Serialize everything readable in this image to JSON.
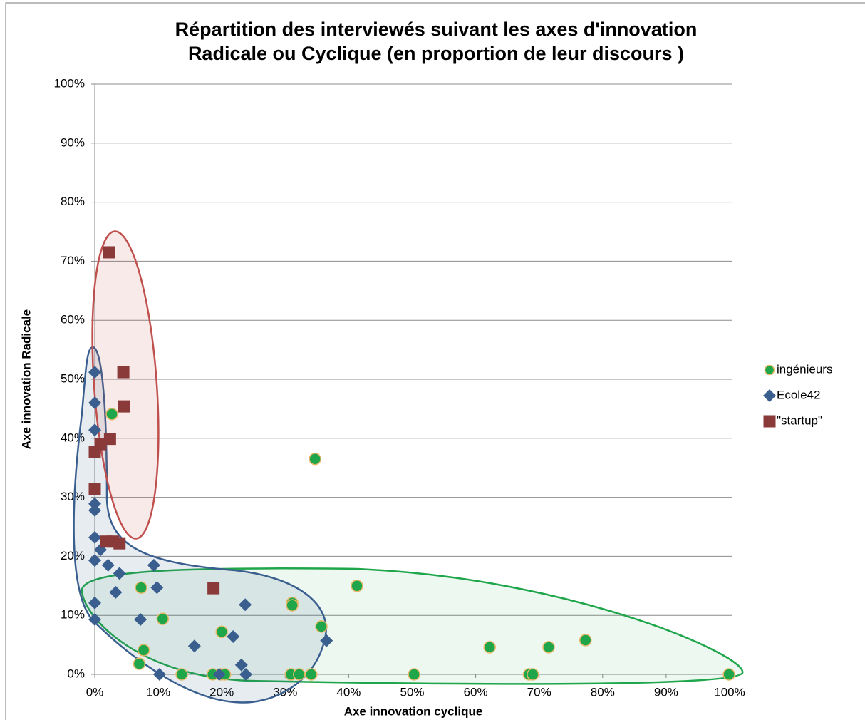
{
  "chart_data": {
    "type": "scatter",
    "title": [
      "Répartition des interviewés suivant les axes d'innovation",
      "Radicale  ou Cyclique (en proportion de leur discours )"
    ],
    "x_label": "Axe innovation cyclique",
    "y_label": "Axe innovation Radicale",
    "xlim": [
      0,
      100
    ],
    "ylim": [
      0,
      100
    ],
    "xticks": [
      {
        "value": 0,
        "label": "0%"
      },
      {
        "value": 10,
        "label": "10%"
      },
      {
        "value": 20,
        "label": "20%"
      },
      {
        "value": 30,
        "label": "30%"
      },
      {
        "value": 40,
        "label": "40%"
      },
      {
        "value": 50,
        "label": "50%"
      },
      {
        "value": 60,
        "label": "60%"
      },
      {
        "value": 70,
        "label": "70%"
      },
      {
        "value": 80,
        "label": "80%"
      },
      {
        "value": 90,
        "label": "90%"
      },
      {
        "value": 100,
        "label": "100%"
      }
    ],
    "yticks": [
      {
        "value": 0,
        "label": "0%"
      },
      {
        "value": 10,
        "label": "10%"
      },
      {
        "value": 20,
        "label": "20%"
      },
      {
        "value": 30,
        "label": "30%"
      },
      {
        "value": 40,
        "label": "40%"
      },
      {
        "value": 50,
        "label": "50%"
      },
      {
        "value": 60,
        "label": "60%"
      },
      {
        "value": 70,
        "label": "70%"
      },
      {
        "value": 80,
        "label": "80%"
      },
      {
        "value": 90,
        "label": "90%"
      },
      {
        "value": 100,
        "label": "100%"
      }
    ],
    "grid": true,
    "legend": "right",
    "series": [
      {
        "name": "ingénieurs",
        "color": "#1fa64a",
        "marker": "circle",
        "x": [
          2.7,
          34.7,
          41.3,
          7.3,
          31.1,
          31.1,
          10.7,
          35.7,
          20.0,
          7.7,
          62.2,
          71.5,
          77.3,
          7.0,
          13.7,
          18.6,
          19.9,
          20.5,
          30.9,
          32.2,
          34.1,
          50.3,
          68.4,
          69.0,
          99.9
        ],
        "values": [
          44.1,
          36.5,
          15.0,
          14.7,
          12.1,
          11.7,
          9.4,
          8.1,
          7.2,
          4.1,
          4.6,
          4.6,
          5.8,
          1.8,
          0,
          0,
          0,
          0,
          0,
          0,
          0,
          0,
          0,
          0,
          0
        ]
      },
      {
        "name": "Ecole42",
        "color": "#3a5f8f",
        "marker": "diamond",
        "x": [
          0,
          0,
          0,
          0,
          0,
          0,
          0.9,
          0,
          2.1,
          3.9,
          9.3,
          3.3,
          9.8,
          23.7,
          0,
          7.2,
          0,
          21.8,
          15.7,
          36.5,
          23.1,
          10.2,
          19.6,
          23.8
        ],
        "values": [
          51.2,
          46.0,
          41.4,
          28.9,
          27.8,
          23.2,
          21.1,
          19.3,
          18.5,
          17.1,
          18.5,
          13.9,
          14.7,
          11.8,
          12.1,
          9.3,
          9.3,
          6.4,
          4.8,
          5.7,
          1.6,
          0,
          0,
          0
        ]
      },
      {
        "name": "\"startup\"",
        "color": "#8b3a3a",
        "marker": "square",
        "x": [
          2.2,
          4.5,
          4.6,
          2.4,
          0.9,
          0,
          0,
          1.8,
          2.9,
          3.9,
          18.7
        ],
        "values": [
          71.5,
          51.2,
          45.4,
          39.9,
          39.0,
          37.7,
          31.4,
          22.5,
          22.5,
          22.2,
          14.6
        ]
      }
    ]
  }
}
